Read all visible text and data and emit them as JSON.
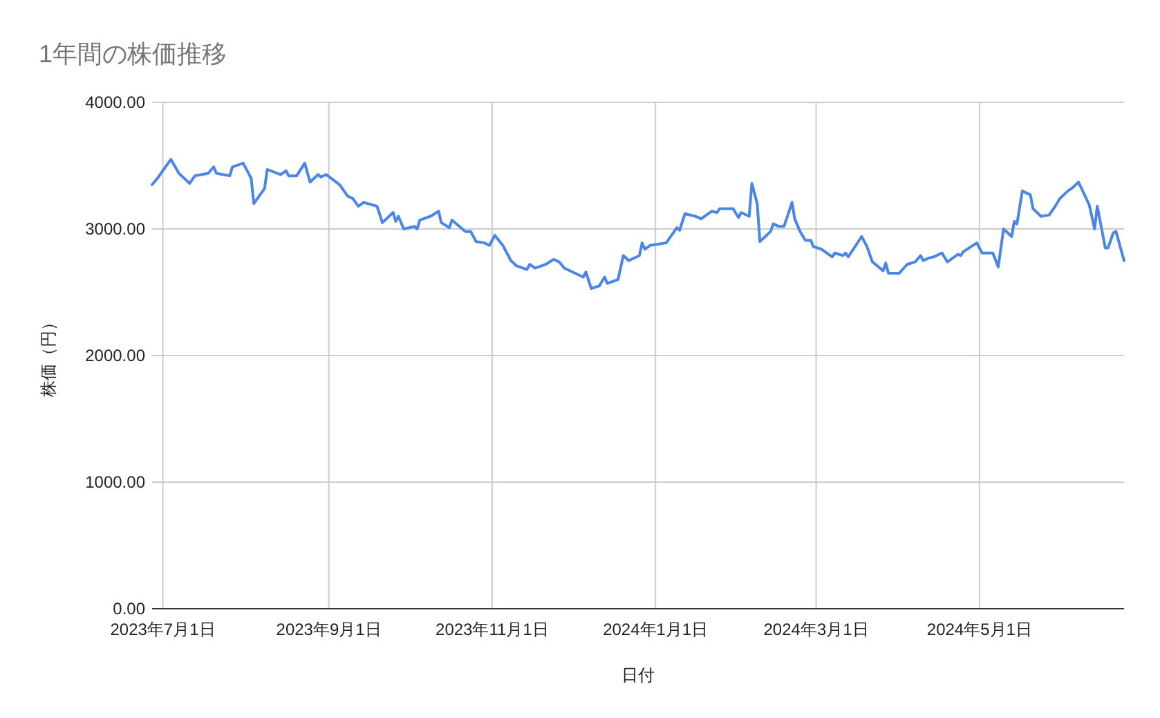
{
  "chart_data": {
    "type": "line",
    "title": "1年間の株価推移",
    "xlabel": "日付",
    "ylabel": "株価（円）",
    "grid": true,
    "marker": "none",
    "line_style": "solid",
    "xlim": [
      "2023-06-27",
      "2024-06-24"
    ],
    "xticks": [
      {
        "value": "2023-07-01",
        "label": "2023年7月1日"
      },
      {
        "value": "2023-09-01",
        "label": "2023年9月1日"
      },
      {
        "value": "2023-11-01",
        "label": "2023年11月1日"
      },
      {
        "value": "2024-01-01",
        "label": "2024年1月1日"
      },
      {
        "value": "2024-03-01",
        "label": "2024年3月1日"
      },
      {
        "value": "2024-05-01",
        "label": "2024年5月1日"
      }
    ],
    "ylim": [
      0,
      4000
    ],
    "yticks": [
      {
        "value": 0,
        "label": "0.00"
      },
      {
        "value": 1000,
        "label": "1000.00"
      },
      {
        "value": 2000,
        "label": "2000.00"
      },
      {
        "value": 3000,
        "label": "3000.00"
      },
      {
        "value": 4000,
        "label": "4000.00"
      }
    ],
    "x": [
      "2023-06-27",
      "2023-06-29",
      "2023-07-04",
      "2023-07-07",
      "2023-07-11",
      "2023-07-13",
      "2023-07-18",
      "2023-07-20",
      "2023-07-21",
      "2023-07-26",
      "2023-07-27",
      "2023-07-31",
      "2023-08-03",
      "2023-08-04",
      "2023-08-08",
      "2023-08-09",
      "2023-08-14",
      "2023-08-16",
      "2023-08-17",
      "2023-08-20",
      "2023-08-23",
      "2023-08-25",
      "2023-08-28",
      "2023-08-29",
      "2023-08-31",
      "2023-09-05",
      "2023-09-08",
      "2023-09-10",
      "2023-09-12",
      "2023-09-14",
      "2023-09-19",
      "2023-09-21",
      "2023-09-25",
      "2023-09-26",
      "2023-09-27",
      "2023-09-29",
      "2023-10-03",
      "2023-10-04",
      "2023-10-05",
      "2023-10-09",
      "2023-10-12",
      "2023-10-13",
      "2023-10-16",
      "2023-10-17",
      "2023-10-22",
      "2023-10-24",
      "2023-10-26",
      "2023-10-29",
      "2023-10-31",
      "2023-11-02",
      "2023-11-05",
      "2023-11-08",
      "2023-11-10",
      "2023-11-14",
      "2023-11-15",
      "2023-11-17",
      "2023-11-21",
      "2023-11-24",
      "2023-11-26",
      "2023-11-28",
      "2023-12-05",
      "2023-12-06",
      "2023-12-08",
      "2023-12-11",
      "2023-12-13",
      "2023-12-14",
      "2023-12-18",
      "2023-12-20",
      "2023-12-22",
      "2023-12-26",
      "2023-12-27",
      "2023-12-28",
      "2023-12-30",
      "2024-01-05",
      "2024-01-09",
      "2024-01-10",
      "2024-01-12",
      "2024-01-16",
      "2024-01-18",
      "2024-01-22",
      "2024-01-24",
      "2024-01-25",
      "2024-01-30",
      "2024-02-01",
      "2024-02-02",
      "2024-02-05",
      "2024-02-06",
      "2024-02-08",
      "2024-02-09",
      "2024-02-13",
      "2024-02-14",
      "2024-02-16",
      "2024-02-18",
      "2024-02-21",
      "2024-02-22",
      "2024-02-24",
      "2024-02-26",
      "2024-02-28",
      "2024-02-29",
      "2024-03-03",
      "2024-03-07",
      "2024-03-08",
      "2024-03-11",
      "2024-03-12",
      "2024-03-13",
      "2024-03-18",
      "2024-03-20",
      "2024-03-22",
      "2024-03-26",
      "2024-03-27",
      "2024-03-28",
      "2024-04-01",
      "2024-04-04",
      "2024-04-07",
      "2024-04-09",
      "2024-04-10",
      "2024-04-12",
      "2024-04-14",
      "2024-04-17",
      "2024-04-19",
      "2024-04-23",
      "2024-04-24",
      "2024-04-25",
      "2024-04-30",
      "2024-05-02",
      "2024-05-06",
      "2024-05-08",
      "2024-05-10",
      "2024-05-13",
      "2024-05-14",
      "2024-05-15",
      "2024-05-17",
      "2024-05-20",
      "2024-05-21",
      "2024-05-24",
      "2024-05-27",
      "2024-05-29",
      "2024-05-31",
      "2024-06-03",
      "2024-06-05",
      "2024-06-07",
      "2024-06-11",
      "2024-06-13",
      "2024-06-14",
      "2024-06-17",
      "2024-06-18",
      "2024-06-20",
      "2024-06-21",
      "2024-06-24"
    ],
    "series": [
      {
        "color": "#4a86e8",
        "values": [
          3350,
          3400,
          3550,
          3440,
          3360,
          3420,
          3440,
          3490,
          3440,
          3420,
          3490,
          3520,
          3400,
          3200,
          3320,
          3470,
          3430,
          3460,
          3420,
          3420,
          3520,
          3370,
          3430,
          3410,
          3430,
          3350,
          3260,
          3240,
          3180,
          3210,
          3180,
          3050,
          3130,
          3060,
          3100,
          3000,
          3020,
          3000,
          3070,
          3100,
          3140,
          3050,
          3010,
          3070,
          2980,
          2980,
          2900,
          2890,
          2870,
          2950,
          2870,
          2750,
          2710,
          2680,
          2720,
          2690,
          2720,
          2760,
          2740,
          2690,
          2620,
          2660,
          2530,
          2550,
          2620,
          2570,
          2600,
          2790,
          2750,
          2790,
          2890,
          2840,
          2870,
          2890,
          3010,
          2990,
          3120,
          3100,
          3080,
          3140,
          3130,
          3160,
          3160,
          3090,
          3130,
          3100,
          3360,
          3200,
          2900,
          2980,
          3040,
          3020,
          3020,
          3210,
          3080,
          2980,
          2910,
          2910,
          2860,
          2840,
          2780,
          2810,
          2790,
          2810,
          2780,
          2940,
          2860,
          2740,
          2670,
          2730,
          2650,
          2650,
          2720,
          2740,
          2790,
          2750,
          2770,
          2780,
          2810,
          2740,
          2800,
          2790,
          2820,
          2890,
          2810,
          2810,
          2700,
          3000,
          2940,
          3060,
          3040,
          3300,
          3270,
          3160,
          3100,
          3110,
          3170,
          3240,
          3300,
          3330,
          3370,
          3190,
          3000,
          3180,
          2850,
          2850,
          2970,
          2980,
          2750
        ]
      }
    ]
  }
}
